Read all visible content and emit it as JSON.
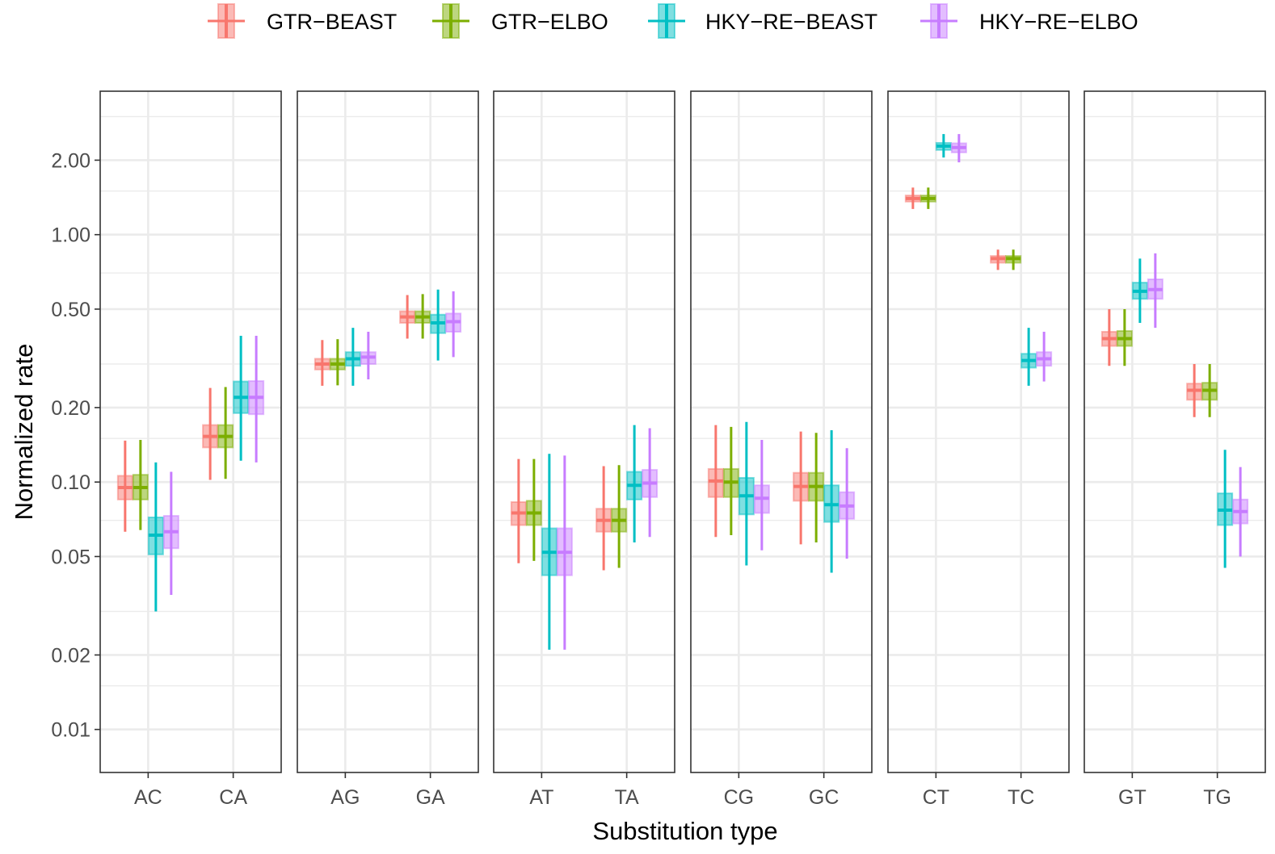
{
  "chart_data": {
    "type": "boxplot",
    "title": "",
    "xlabel": "Substitution type",
    "ylabel": "Normalized rate",
    "y_scale": "log10",
    "ylim": [
      0.0067,
      3.8
    ],
    "y_ticks": [
      0.01,
      0.02,
      0.05,
      0.1,
      0.2,
      0.5,
      1.0,
      2.0
    ],
    "y_tick_labels": [
      "0.01",
      "0.02",
      "0.05",
      "0.10",
      "0.20",
      "0.50",
      "1.00",
      "2.00"
    ],
    "grid": true,
    "legend_position": "top",
    "series": [
      {
        "name": "GTR−BEAST",
        "color": "#F8766D"
      },
      {
        "name": "GTR−ELBO",
        "color": "#7CAE00"
      },
      {
        "name": "HKY−RE−BEAST",
        "color": "#00BFC4"
      },
      {
        "name": "HKY−RE−ELBO",
        "color": "#C77CFF"
      }
    ],
    "facets": [
      {
        "categories": [
          {
            "label": "AC",
            "stats": [
              [
                0.063,
                0.085,
                0.095,
                0.106,
                0.147
              ],
              [
                0.064,
                0.085,
                0.095,
                0.107,
                0.148
              ],
              null,
              null
            ]
          },
          {
            "label": "CA",
            "stats": [
              [
                0.102,
                0.138,
                0.153,
                0.17,
                0.24
              ],
              [
                0.103,
                0.138,
                0.153,
                0.17,
                0.242
              ],
              null,
              null
            ]
          }
        ],
        "slot_cats": [
          0,
          0,
          1,
          1
        ],
        "slot_stats": [
          [
            [
              0.063,
              0.085,
              0.095,
              0.106,
              0.147
            ],
            [
              0.064,
              0.085,
              0.095,
              0.107,
              0.148
            ],
            [
              0.03,
              0.051,
              0.061,
              0.072,
              0.12
            ],
            [
              0.035,
              0.054,
              0.063,
              0.073,
              0.11
            ]
          ],
          [
            [
              0.102,
              0.138,
              0.153,
              0.17,
              0.24
            ],
            [
              0.103,
              0.138,
              0.153,
              0.17,
              0.242
            ],
            [
              0.122,
              0.19,
              0.22,
              0.255,
              0.39
            ],
            [
              0.12,
              0.188,
              0.22,
              0.256,
              0.39
            ]
          ]
        ]
      },
      {
        "categories": [
          {
            "label": "AG",
            "stats": [
              [
                0.245,
                0.285,
                0.3,
                0.315,
                0.375
              ],
              [
                0.246,
                0.285,
                0.3,
                0.315,
                0.378
              ],
              [
                0.245,
                0.295,
                0.315,
                0.335,
                0.42
              ],
              [
                0.26,
                0.3,
                0.32,
                0.335,
                0.405
              ]
            ]
          },
          {
            "label": "GA",
            "stats": [
              [
                0.38,
                0.44,
                0.465,
                0.49,
                0.57
              ],
              [
                0.38,
                0.44,
                0.465,
                0.49,
                0.575
              ],
              [
                0.31,
                0.4,
                0.44,
                0.475,
                0.6
              ],
              [
                0.32,
                0.405,
                0.445,
                0.48,
                0.59
              ]
            ]
          }
        ]
      },
      {
        "categories": [
          {
            "label": "AT",
            "stats": [
              [
                0.047,
                0.067,
                0.075,
                0.083,
                0.124
              ],
              [
                0.048,
                0.067,
                0.075,
                0.084,
                0.124
              ],
              [
                0.021,
                0.042,
                0.052,
                0.065,
                0.13
              ],
              [
                0.021,
                0.042,
                0.052,
                0.065,
                0.128
              ]
            ]
          },
          {
            "label": "TA",
            "stats": [
              [
                0.044,
                0.063,
                0.07,
                0.078,
                0.116
              ],
              [
                0.045,
                0.063,
                0.07,
                0.078,
                0.117
              ],
              [
                0.057,
                0.085,
                0.097,
                0.11,
                0.17
              ],
              [
                0.06,
                0.087,
                0.099,
                0.112,
                0.165
              ]
            ]
          }
        ]
      },
      {
        "categories": [
          {
            "label": "CG",
            "stats": [
              [
                0.06,
                0.087,
                0.101,
                0.113,
                0.17
              ],
              [
                0.061,
                0.087,
                0.1,
                0.113,
                0.167
              ],
              [
                0.046,
                0.074,
                0.088,
                0.104,
                0.175
              ],
              [
                0.053,
                0.075,
                0.086,
                0.097,
                0.148
              ]
            ]
          },
          {
            "label": "GC",
            "stats": [
              [
                0.056,
                0.084,
                0.096,
                0.109,
                0.16
              ],
              [
                0.057,
                0.084,
                0.096,
                0.109,
                0.158
              ],
              [
                0.043,
                0.069,
                0.081,
                0.097,
                0.162
              ],
              [
                0.049,
                0.071,
                0.08,
                0.091,
                0.137
              ]
            ]
          }
        ]
      },
      {
        "categories": [
          {
            "label": "CT",
            "stats": [
              [
                1.27,
                1.36,
                1.4,
                1.44,
                1.55
              ],
              [
                1.27,
                1.36,
                1.4,
                1.44,
                1.55
              ],
              [
                2.05,
                2.2,
                2.28,
                2.35,
                2.55
              ],
              [
                1.96,
                2.15,
                2.25,
                2.34,
                2.55
              ]
            ]
          },
          {
            "label": "TC",
            "stats": [
              [
                0.72,
                0.77,
                0.8,
                0.82,
                0.87
              ],
              [
                0.72,
                0.77,
                0.8,
                0.82,
                0.87
              ],
              [
                0.245,
                0.29,
                0.31,
                0.33,
                0.42
              ],
              [
                0.255,
                0.295,
                0.315,
                0.335,
                0.405
              ]
            ]
          }
        ]
      },
      {
        "categories": [
          {
            "label": "GT",
            "stats": [
              [
                0.295,
                0.355,
                0.38,
                0.405,
                0.5
              ],
              [
                0.295,
                0.355,
                0.38,
                0.408,
                0.5
              ],
              [
                0.44,
                0.55,
                0.59,
                0.64,
                0.8
              ],
              [
                0.42,
                0.55,
                0.6,
                0.66,
                0.84
              ]
            ]
          },
          {
            "label": "TG",
            "stats": [
              [
                0.183,
                0.215,
                0.235,
                0.25,
                0.3
              ],
              [
                0.183,
                0.215,
                0.235,
                0.252,
                0.3
              ],
              [
                0.045,
                0.067,
                0.077,
                0.09,
                0.135
              ],
              [
                0.05,
                0.068,
                0.076,
                0.085,
                0.115
              ]
            ]
          }
        ]
      }
    ],
    "stat_fields": [
      "whisker_low",
      "q1",
      "median",
      "q3",
      "whisker_high"
    ]
  }
}
